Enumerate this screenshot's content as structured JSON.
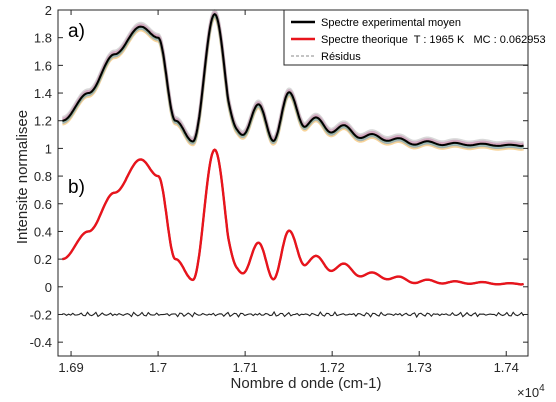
{
  "chart_data": {
    "type": "line",
    "ylabel": "Intensite normalisee",
    "xlabel": "Nombre d onde (cm-1)",
    "x_multiplier": "×10",
    "x_multiplier_exp": "4",
    "xlim": [
      1.6885,
      1.7425
    ],
    "ylim": [
      -0.5,
      2.0
    ],
    "xticks": [
      1.69,
      1.7,
      1.71,
      1.72,
      1.73,
      1.74
    ],
    "xtick_labels": [
      "1.69",
      "1.7",
      "1.71",
      "1.72",
      "1.73",
      "1.74"
    ],
    "yticks": [
      -0.4,
      -0.2,
      0,
      0.2,
      0.4,
      0.6,
      0.8,
      1,
      1.2,
      1.4,
      1.6,
      1.8,
      2
    ],
    "ytick_labels": [
      "-0.4",
      "-0.2",
      "0",
      "0.2",
      "0.4",
      "0.6",
      "0.8",
      "1",
      "1.2",
      "1.4",
      "1.6",
      "1.8",
      "2"
    ],
    "panel_labels": [
      "a)",
      "b)"
    ],
    "legend": {
      "position": "top-right",
      "entries": [
        {
          "label": "Spectre experimental moyen",
          "color": "#000000",
          "style": "solid"
        },
        {
          "label": "Spectre theorique  T : 1965 K   MC : 0.062953",
          "color": "#e8141c",
          "style": "solid"
        },
        {
          "label": "Résidus",
          "color": "#888888",
          "style": "dashed"
        }
      ]
    },
    "grid": false,
    "series": [
      {
        "name": "Spectre experimental moyen",
        "panel": "a",
        "color": "#000000",
        "x": [
          1.689,
          1.692,
          1.695,
          1.698,
          1.7,
          1.702,
          1.704,
          1.7065,
          1.709,
          1.711,
          1.713,
          1.715,
          1.717,
          1.72,
          1.725,
          1.73,
          1.735,
          1.742
        ],
        "y": [
          1.2,
          1.4,
          1.68,
          1.88,
          1.8,
          1.2,
          1.05,
          1.97,
          1.05,
          1.3,
          1.1,
          1.35,
          1.2,
          1.15,
          1.08,
          1.04,
          1.03,
          1.02
        ]
      },
      {
        "name": "Spectre experimental moyen",
        "panel": "b",
        "color": "#000000",
        "x": [
          1.689,
          1.692,
          1.695,
          1.698,
          1.7,
          1.702,
          1.704,
          1.7065,
          1.709,
          1.711,
          1.713,
          1.715,
          1.717,
          1.72,
          1.725,
          1.73,
          1.735,
          1.742
        ],
        "y": [
          0.2,
          0.4,
          0.68,
          0.92,
          0.8,
          0.2,
          0.05,
          0.99,
          0.05,
          0.3,
          0.1,
          0.35,
          0.2,
          0.15,
          0.08,
          0.04,
          0.03,
          0.02
        ]
      },
      {
        "name": "Spectre theorique  T : 1965 K   MC : 0.062953",
        "panel": "b",
        "color": "#e8141c",
        "x": [
          1.689,
          1.692,
          1.695,
          1.698,
          1.7,
          1.702,
          1.704,
          1.7065,
          1.709,
          1.711,
          1.713,
          1.715,
          1.717,
          1.72,
          1.725,
          1.73,
          1.735,
          1.742
        ],
        "y": [
          0.2,
          0.4,
          0.68,
          0.92,
          0.8,
          0.2,
          0.05,
          0.99,
          0.05,
          0.3,
          0.1,
          0.35,
          0.2,
          0.15,
          0.08,
          0.04,
          0.03,
          0.02
        ]
      },
      {
        "name": "Résidus",
        "panel": "b",
        "color": "#222222",
        "x": [
          1.689,
          1.7,
          1.71,
          1.72,
          1.73,
          1.742
        ],
        "y": [
          -0.2,
          -0.2,
          -0.2,
          -0.2,
          -0.2,
          -0.2
        ]
      }
    ]
  }
}
